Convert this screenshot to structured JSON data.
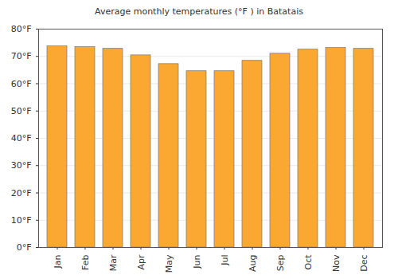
{
  "chart_data": {
    "type": "bar",
    "title": "Average monthly temperatures (°F ) in Batatais",
    "categories": [
      "Jan",
      "Feb",
      "Mar",
      "Apr",
      "May",
      "Jun",
      "Jul",
      "Aug",
      "Sep",
      "Oct",
      "Nov",
      "Dec"
    ],
    "values": [
      73.7,
      73.4,
      72.8,
      70.4,
      67.2,
      64.6,
      64.6,
      68.4,
      71.0,
      72.5,
      73.1,
      72.8
    ],
    "color": "#fba832",
    "ylim": [
      0,
      80
    ],
    "yticks": [
      {
        "value": 0,
        "label": "0°F"
      },
      {
        "value": 10,
        "label": "10°F"
      },
      {
        "value": 20,
        "label": "20°F"
      },
      {
        "value": 30,
        "label": "30°F"
      },
      {
        "value": 40,
        "label": "40°F"
      },
      {
        "value": 50,
        "label": "50°F"
      },
      {
        "value": 60,
        "label": "60°F"
      },
      {
        "value": 70,
        "label": "70°F"
      },
      {
        "value": 80,
        "label": "80°F"
      }
    ],
    "grid": true
  }
}
